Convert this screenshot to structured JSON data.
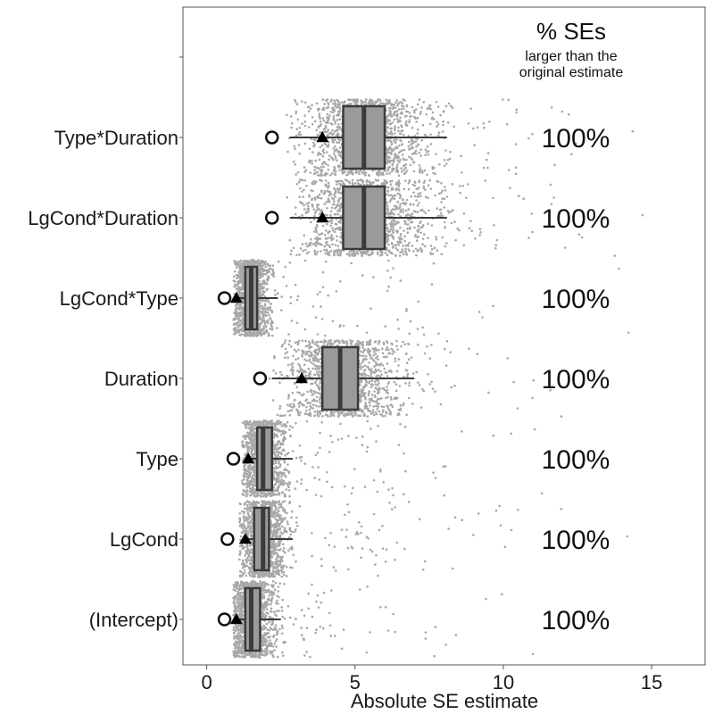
{
  "chart_data": {
    "type": "boxplot",
    "xlabel": "Absolute SE estimate",
    "xlim": [
      -0.8,
      16.8
    ],
    "x_ticks": [
      0,
      5,
      10,
      15
    ],
    "x_tick_labels": [
      "0",
      "5",
      "10",
      "15"
    ],
    "annotation": {
      "title": "% SEs",
      "subtitle_line1": "larger than the",
      "subtitle_line2": "original estimate"
    },
    "categories": [
      "Type*Duration",
      "LgCond*Duration",
      "LgCond*Type",
      "Duration",
      "Type",
      "LgCond",
      "(Intercept)"
    ],
    "boxes": [
      {
        "label": "Type*Duration",
        "whisker_low": 2.8,
        "q1": 4.6,
        "median": 5.3,
        "q3": 6.0,
        "whisker_high": 8.1,
        "mean": 3.9,
        "original": 2.2,
        "jitter_min": 2.7,
        "jitter_max": 14.6,
        "pct_text": "100%"
      },
      {
        "label": "LgCond*Duration",
        "whisker_low": 2.8,
        "q1": 4.6,
        "median": 5.3,
        "q3": 6.0,
        "whisker_high": 8.1,
        "mean": 3.9,
        "original": 2.2,
        "jitter_min": 2.7,
        "jitter_max": 15.5,
        "pct_text": "100%"
      },
      {
        "label": "LgCond*Type",
        "whisker_low": 1.0,
        "q1": 1.3,
        "median": 1.5,
        "q3": 1.7,
        "whisker_high": 2.4,
        "mean": 1.0,
        "original": 0.6,
        "jitter_min": 0.9,
        "jitter_max": 14.5,
        "pct_text": "100%"
      },
      {
        "label": "Duration",
        "whisker_low": 2.2,
        "q1": 3.9,
        "median": 4.5,
        "q3": 5.1,
        "whisker_high": 7.0,
        "mean": 3.2,
        "original": 1.8,
        "jitter_min": 2.1,
        "jitter_max": 13.5,
        "pct_text": "100%"
      },
      {
        "label": "Type",
        "whisker_low": 1.4,
        "q1": 1.7,
        "median": 1.9,
        "q3": 2.2,
        "whisker_high": 2.9,
        "mean": 1.4,
        "original": 0.9,
        "jitter_min": 1.2,
        "jitter_max": 11.5,
        "pct_text": "100%"
      },
      {
        "label": "LgCond",
        "whisker_low": 1.4,
        "q1": 1.6,
        "median": 1.9,
        "q3": 2.1,
        "whisker_high": 2.9,
        "mean": 1.3,
        "original": 0.7,
        "jitter_min": 1.1,
        "jitter_max": 15.3,
        "pct_text": "100%"
      },
      {
        "label": "(Intercept)",
        "whisker_low": 1.0,
        "q1": 1.3,
        "median": 1.5,
        "q3": 1.8,
        "whisker_high": 2.5,
        "mean": 1.0,
        "original": 0.6,
        "jitter_min": 0.9,
        "jitter_max": 11.2,
        "pct_text": "100%"
      }
    ],
    "colors": {
      "points": "#a8a8a8",
      "box_fill": "#9a9a9a",
      "box_stroke": "#3a3a3a",
      "mean_marker": "#000000",
      "original_marker": "#111111",
      "axis": "#555555"
    },
    "legend": "none",
    "grid": false
  }
}
